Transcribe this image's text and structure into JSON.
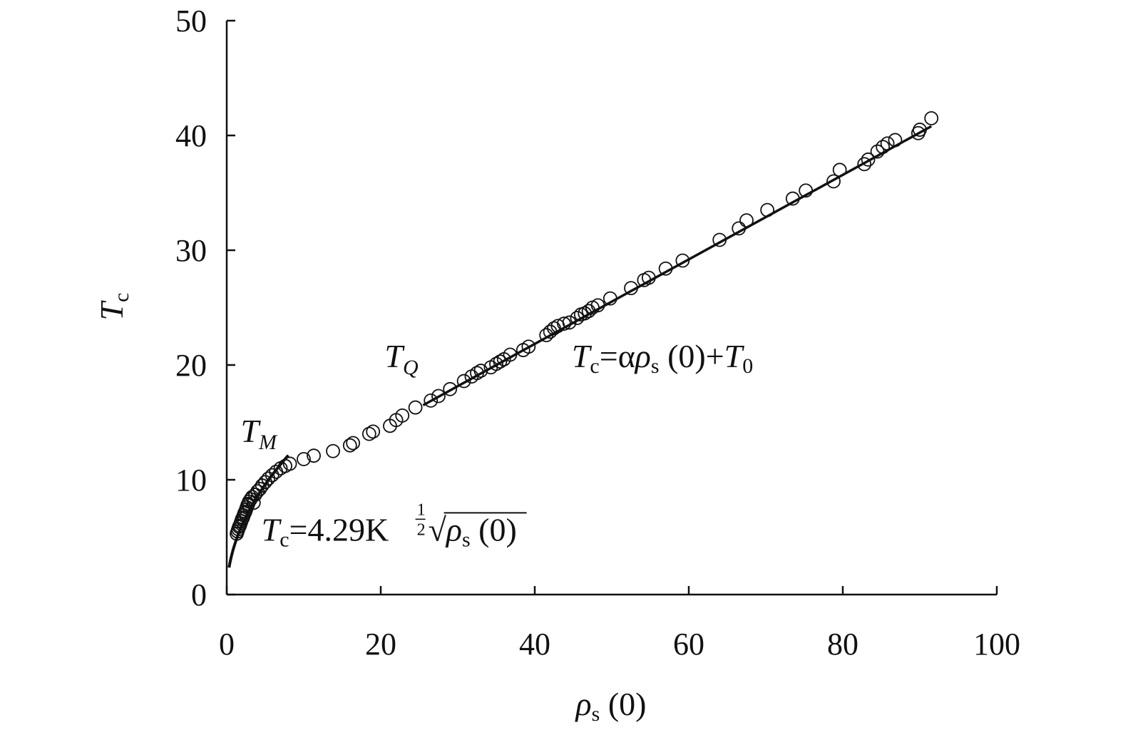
{
  "chart_data": {
    "type": "scatter",
    "xlabel": {
      "symbol": "ρ",
      "subscript": "s",
      "suffix": " (0)"
    },
    "ylabel": {
      "symbol": "T",
      "subscript": "c"
    },
    "xlim": [
      0,
      100
    ],
    "ylim": [
      0,
      50
    ],
    "x_ticks": [
      0,
      20,
      40,
      60,
      80,
      100
    ],
    "y_ticks": [
      0,
      10,
      20,
      30,
      40,
      50
    ],
    "grid": false,
    "legend": "none",
    "series": [
      {
        "kind": "scatter",
        "marker": "open-circle",
        "points": [
          [
            1.3,
            5.3
          ],
          [
            1.4,
            5.5
          ],
          [
            1.5,
            5.7
          ],
          [
            1.6,
            5.9
          ],
          [
            1.7,
            6.0
          ],
          [
            1.8,
            6.2
          ],
          [
            1.9,
            6.4
          ],
          [
            2.0,
            6.6
          ],
          [
            2.1,
            6.7
          ],
          [
            2.2,
            6.9
          ],
          [
            2.3,
            7.1
          ],
          [
            2.4,
            7.2
          ],
          [
            2.5,
            7.4
          ],
          [
            2.6,
            7.6
          ],
          [
            2.7,
            7.8
          ],
          [
            2.8,
            7.9
          ],
          [
            2.9,
            8.1
          ],
          [
            3.1,
            8.3
          ],
          [
            3.3,
            8.5
          ],
          [
            3.5,
            8.0
          ],
          [
            3.7,
            8.7
          ],
          [
            4.0,
            9.0
          ],
          [
            4.3,
            9.2
          ],
          [
            4.6,
            9.5
          ],
          [
            5.0,
            9.8
          ],
          [
            5.4,
            10.1
          ],
          [
            5.9,
            10.4
          ],
          [
            6.4,
            10.7
          ],
          [
            7.0,
            11.0
          ],
          [
            7.6,
            11.2
          ],
          [
            8.2,
            11.4
          ],
          [
            10.0,
            11.8
          ],
          [
            11.3,
            12.1
          ],
          [
            13.8,
            12.5
          ],
          [
            16.0,
            13.0
          ],
          [
            16.4,
            13.2
          ],
          [
            18.5,
            14.0
          ],
          [
            19.0,
            14.2
          ],
          [
            21.2,
            14.7
          ],
          [
            22.0,
            15.2
          ],
          [
            22.8,
            15.6
          ],
          [
            24.5,
            16.3
          ],
          [
            26.5,
            16.9
          ],
          [
            27.5,
            17.3
          ],
          [
            29.0,
            17.9
          ],
          [
            30.8,
            18.6
          ],
          [
            31.8,
            19.0
          ],
          [
            32.5,
            19.3
          ],
          [
            33.0,
            19.5
          ],
          [
            34.3,
            19.8
          ],
          [
            35.0,
            20.1
          ],
          [
            35.5,
            20.3
          ],
          [
            36.0,
            20.5
          ],
          [
            36.8,
            20.9
          ],
          [
            38.5,
            21.3
          ],
          [
            39.2,
            21.6
          ],
          [
            41.5,
            22.6
          ],
          [
            42.0,
            22.9
          ],
          [
            42.5,
            23.2
          ],
          [
            43.0,
            23.4
          ],
          [
            43.8,
            23.6
          ],
          [
            44.5,
            23.7
          ],
          [
            45.5,
            24.1
          ],
          [
            46.0,
            24.4
          ],
          [
            46.5,
            24.5
          ],
          [
            47.0,
            24.7
          ],
          [
            47.5,
            25.0
          ],
          [
            48.2,
            25.2
          ],
          [
            49.8,
            25.8
          ],
          [
            52.5,
            26.7
          ],
          [
            54.2,
            27.4
          ],
          [
            54.8,
            27.6
          ],
          [
            57.0,
            28.4
          ],
          [
            59.2,
            29.1
          ],
          [
            64.0,
            30.9
          ],
          [
            66.5,
            31.9
          ],
          [
            67.5,
            32.6
          ],
          [
            70.2,
            33.5
          ],
          [
            73.5,
            34.5
          ],
          [
            75.2,
            35.2
          ],
          [
            78.8,
            36.0
          ],
          [
            79.6,
            37.0
          ],
          [
            82.8,
            37.5
          ],
          [
            83.3,
            37.9
          ],
          [
            84.5,
            38.6
          ],
          [
            85.2,
            39.0
          ],
          [
            85.8,
            39.3
          ],
          [
            86.8,
            39.6
          ],
          [
            89.8,
            40.2
          ],
          [
            90.0,
            40.5
          ],
          [
            91.5,
            41.5
          ]
        ]
      },
      {
        "kind": "fit-curve",
        "name": "sqrt",
        "expression": "Tc = 4.29 * sqrt(rho)",
        "coefficient": 4.29,
        "x_range": [
          0.3,
          8.0
        ]
      },
      {
        "kind": "fit-line",
        "name": "linear",
        "expression": "Tc = α ρs(0) + T0",
        "x_range": [
          25.5,
          91.5
        ],
        "y_range": [
          16.5,
          40.8
        ]
      }
    ],
    "annotations": [
      {
        "id": "tq",
        "symbol": "T",
        "subscript": "Q",
        "x": 20.5,
        "y": 19.8
      },
      {
        "id": "tm",
        "symbol": "T",
        "subscript": "M",
        "x": 1.8,
        "y": 13.3
      },
      {
        "id": "linear-formula",
        "x": 44.8,
        "y": 19.8,
        "parts": {
          "t": "T",
          "c": "c",
          "eq": "=α",
          "rho": "ρ",
          "s": "s",
          "mid": " (0)+",
          "t0": "T",
          "zero": "0"
        }
      },
      {
        "id": "sqrt-formula",
        "x": 4.5,
        "y": 4.7,
        "parts": {
          "t": "T",
          "c": "c",
          "eq": "=4.29K",
          "num": "1",
          "den": "2",
          "root": "√",
          "rho": "ρ",
          "s": "s",
          "tail": " (0)"
        }
      }
    ]
  }
}
